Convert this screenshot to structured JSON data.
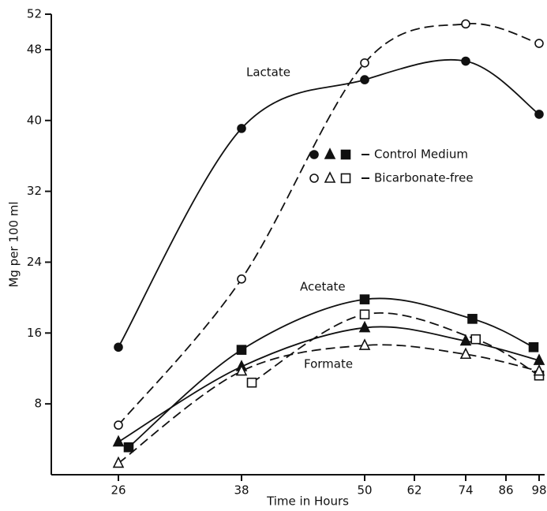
{
  "chart_data": {
    "type": "line",
    "xlabel": "Time in Hours",
    "ylabel": "Mg per 100 ml",
    "xlim": [
      19.5,
      98.5
    ],
    "xticks": [
      26,
      38,
      50,
      62,
      74,
      86,
      98
    ],
    "ylim": [
      0,
      52
    ],
    "yticks": [
      8,
      16,
      24,
      32,
      40,
      48,
      52
    ],
    "legend": [
      {
        "label": "Control Medium",
        "filled": true
      },
      {
        "label": "Bicarbonate-free",
        "filled": false
      }
    ],
    "annotations": [
      "Lactate",
      "Acetate",
      "Formate"
    ],
    "series": [
      {
        "marker": "circle",
        "filled": true,
        "dashed": false,
        "color": "#111",
        "x": [
          26,
          38,
          50,
          74,
          98
        ],
        "values": [
          14.4,
          39.1,
          44.6,
          46.7,
          40.7
        ]
      },
      {
        "marker": "circle",
        "filled": false,
        "dashed": true,
        "color": "#111",
        "x": [
          26,
          38,
          50,
          74,
          98
        ],
        "values": [
          5.6,
          22.1,
          46.5,
          50.9,
          48.7
        ]
      },
      {
        "marker": "square",
        "filled": true,
        "dashed": false,
        "color": "#111",
        "x": [
          27,
          38,
          50,
          76,
          96
        ],
        "values": [
          3.1,
          14.1,
          19.8,
          17.6,
          14.4
        ]
      },
      {
        "marker": "square",
        "filled": false,
        "dashed": true,
        "color": "#111",
        "x": [
          39,
          50,
          77,
          98
        ],
        "values": [
          10.4,
          18.1,
          15.3,
          11.2
        ]
      },
      {
        "marker": "triangle",
        "filled": true,
        "dashed": false,
        "color": "#111",
        "x": [
          26,
          38,
          50,
          74,
          98
        ],
        "values": [
          3.7,
          12.2,
          16.6,
          15.1,
          12.9
        ]
      },
      {
        "marker": "triangle",
        "filled": false,
        "dashed": true,
        "color": "#111",
        "x": [
          26,
          38,
          50,
          74,
          98
        ],
        "values": [
          1.3,
          11.7,
          14.6,
          13.6,
          11.7
        ]
      }
    ]
  }
}
